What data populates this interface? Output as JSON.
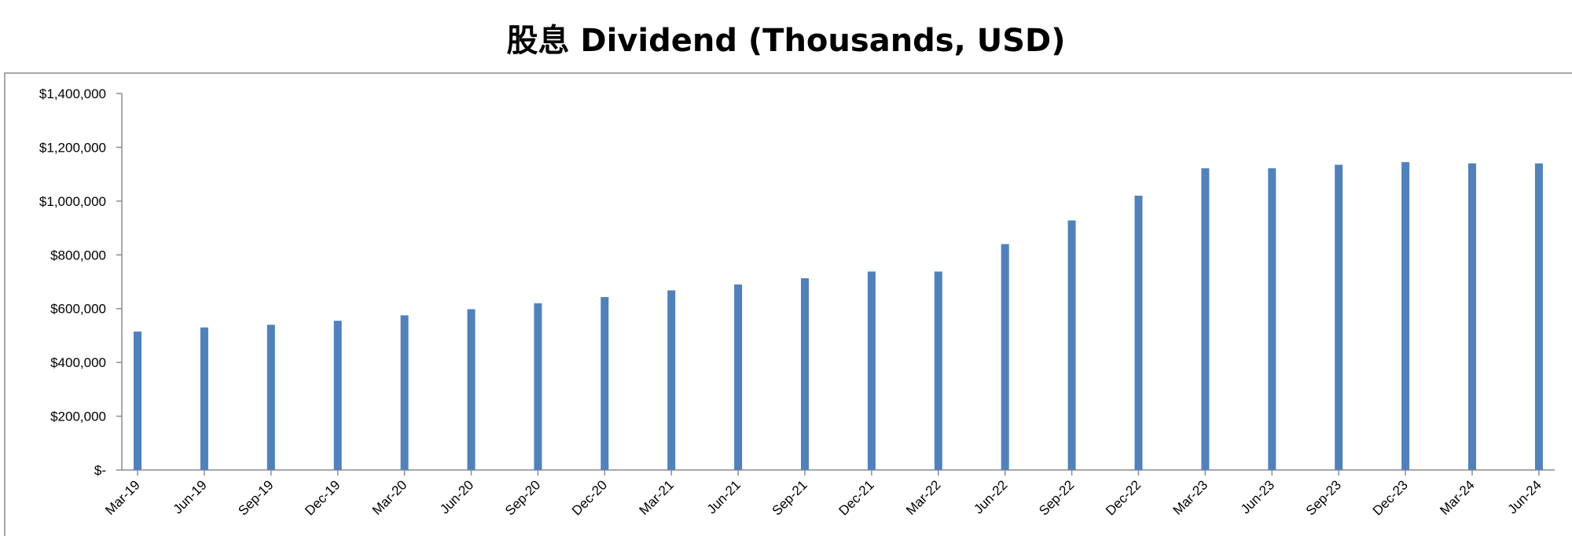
{
  "chart_data": {
    "type": "bar",
    "title": "股息 Dividend (Thousands, USD)",
    "xlabel": "",
    "ylabel": "",
    "ylim": [
      0,
      1400000
    ],
    "y_ticks": [
      0,
      200000,
      400000,
      600000,
      800000,
      1000000,
      1200000,
      1400000
    ],
    "y_tick_labels": [
      "$-",
      "$200,000",
      "$400,000",
      "$600,000",
      "$800,000",
      "$1,000,000",
      "$1,200,000",
      "$1,400,000"
    ],
    "categories": [
      "Mar-19",
      "Jun-19",
      "Sep-19",
      "Dec-19",
      "Mar-20",
      "Jun-20",
      "Sep-20",
      "Dec-20",
      "Mar-21",
      "Jun-21",
      "Sep-21",
      "Dec-21",
      "Mar-22",
      "Jun-22",
      "Sep-22",
      "Dec-22",
      "Mar-23",
      "Jun-23",
      "Sep-23",
      "Dec-23",
      "Mar-24",
      "Jun-24"
    ],
    "values": [
      515000,
      530000,
      540000,
      555000,
      575000,
      598000,
      620000,
      643000,
      668000,
      690000,
      713000,
      738000,
      738000,
      840000,
      928000,
      1020000,
      1122000,
      1122000,
      1135000,
      1145000,
      1140000,
      1140000
    ],
    "bar_color": "#4F81BD",
    "grid": false,
    "legend": "none"
  }
}
